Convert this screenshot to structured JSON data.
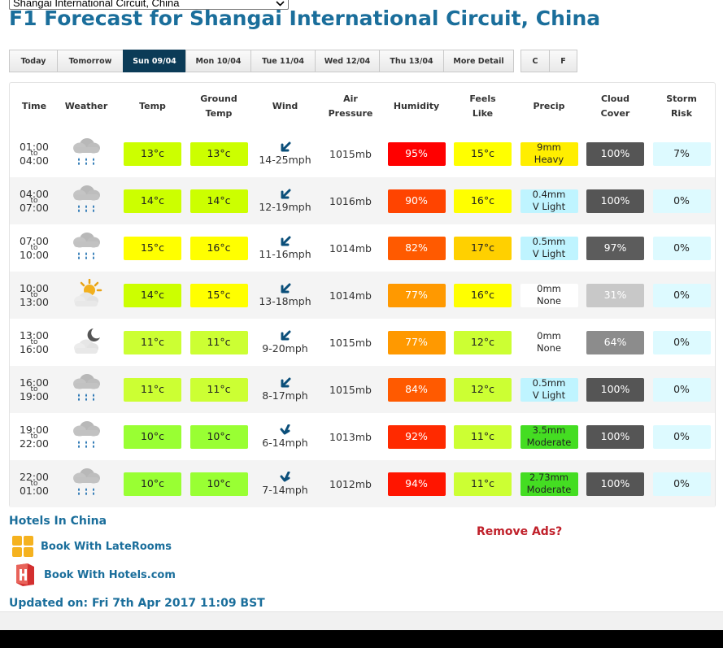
{
  "track_select": {
    "selected": "Shangai International Circuit, China"
  },
  "page_title": "F1 Forecast for Shangai International Circuit, China",
  "tabs": [
    {
      "label": "Today",
      "active": false
    },
    {
      "label": "Tomorrow",
      "active": false
    },
    {
      "label": "Sun 09/04",
      "active": true
    },
    {
      "label": "Mon 10/04",
      "active": false
    },
    {
      "label": "Tue 11/04",
      "active": false
    },
    {
      "label": "Wed 12/04",
      "active": false
    },
    {
      "label": "Thu 13/04",
      "active": false
    },
    {
      "label": "More Detail",
      "active": false
    }
  ],
  "units": [
    {
      "label": "C"
    },
    {
      "label": "F"
    }
  ],
  "columns": {
    "time": "Time",
    "weather": "Weather",
    "temp": "Temp",
    "ground_temp_1": "Ground",
    "ground_temp_2": "Temp",
    "wind": "Wind",
    "pressure_1": "Air",
    "pressure_2": "Pressure",
    "humidity": "Humidity",
    "feels_1": "Feels",
    "feels_2": "Like",
    "precip": "Precip",
    "cloud_1": "Cloud",
    "cloud_2": "Cover",
    "storm_1": "Storm",
    "storm_2": "Risk"
  },
  "rows": [
    {
      "from": "01:00",
      "to_word": "to",
      "until": "04:00",
      "icon": "rain-cloud-icon",
      "temp": "13°c",
      "temp_color": "#ccff00",
      "ground": "13°c",
      "ground_color": "#ccff00",
      "wind_speed": "14-25mph",
      "wind_dir": "from-north-east",
      "pressure": "1015mb",
      "humidity": "95%",
      "humidity_color": "#ff0000",
      "feels": "15°c",
      "feels_color": "#ffff00",
      "precip_amount": "9mm",
      "precip_desc": "Heavy",
      "precip_color": "#ffee00",
      "cloud": "100%",
      "cloud_color": "#555555",
      "storm": "7%",
      "storm_color": "#ddfaff"
    },
    {
      "from": "04:00",
      "to_word": "to",
      "until": "07:00",
      "icon": "rain-cloud-icon",
      "temp": "14°c",
      "temp_color": "#ccff00",
      "ground": "14°c",
      "ground_color": "#ccff00",
      "wind_speed": "12-19mph",
      "wind_dir": "from-north-east",
      "pressure": "1016mb",
      "humidity": "90%",
      "humidity_color": "#ff4400",
      "feels": "16°c",
      "feels_color": "#ffff00",
      "precip_amount": "0.4mm",
      "precip_desc": "V Light",
      "precip_color": "#bff4ff",
      "cloud": "100%",
      "cloud_color": "#555555",
      "storm": "0%",
      "storm_color": "#ddfaff"
    },
    {
      "from": "07:00",
      "to_word": "to",
      "until": "10:00",
      "icon": "rain-cloud-icon",
      "temp": "15°c",
      "temp_color": "#ffff00",
      "ground": "16°c",
      "ground_color": "#ffff00",
      "wind_speed": "11-16mph",
      "wind_dir": "from-north-east",
      "pressure": "1014mb",
      "humidity": "82%",
      "humidity_color": "#ff5a00",
      "feels": "17°c",
      "feels_color": "#ffd000",
      "precip_amount": "0.5mm",
      "precip_desc": "V Light",
      "precip_color": "#bff4ff",
      "cloud": "97%",
      "cloud_color": "#5c5c5c",
      "storm": "0%",
      "storm_color": "#ddfaff"
    },
    {
      "from": "10:00",
      "to_word": "to",
      "until": "13:00",
      "icon": "sun-behind-cloud-icon",
      "temp": "14°c",
      "temp_color": "#ccff00",
      "ground": "15°c",
      "ground_color": "#ffff00",
      "wind_speed": "13-18mph",
      "wind_dir": "from-north-east",
      "pressure": "1014mb",
      "humidity": "77%",
      "humidity_color": "#ff9900",
      "feels": "16°c",
      "feels_color": "#ffff00",
      "precip_amount": "0mm",
      "precip_desc": "None",
      "precip_color": "#ffffff",
      "cloud": "31%",
      "cloud_color": "#c8c8c8",
      "storm": "0%",
      "storm_color": "#ddfaff"
    },
    {
      "from": "13:00",
      "to_word": "to",
      "until": "16:00",
      "icon": "moon-behind-cloud-icon",
      "temp": "11°c",
      "temp_color": "#ccff33",
      "ground": "11°c",
      "ground_color": "#ccff33",
      "wind_speed": "9-20mph",
      "wind_dir": "from-north-east",
      "pressure": "1015mb",
      "humidity": "77%",
      "humidity_color": "#ff9900",
      "feels": "12°c",
      "feels_color": "#ccff33",
      "precip_amount": "0mm",
      "precip_desc": "None",
      "precip_color": "#ffffff",
      "cloud": "64%",
      "cloud_color": "#8c8c8c",
      "storm": "0%",
      "storm_color": "#ddfaff"
    },
    {
      "from": "16:00",
      "to_word": "to",
      "until": "19:00",
      "icon": "rain-cloud-icon",
      "temp": "11°c",
      "temp_color": "#ccff33",
      "ground": "11°c",
      "ground_color": "#ccff33",
      "wind_speed": "8-17mph",
      "wind_dir": "from-north-east",
      "pressure": "1015mb",
      "humidity": "84%",
      "humidity_color": "#ff5a00",
      "feels": "12°c",
      "feels_color": "#ccff33",
      "precip_amount": "0.5mm",
      "precip_desc": "V Light",
      "precip_color": "#bff4ff",
      "cloud": "100%",
      "cloud_color": "#555555",
      "storm": "0%",
      "storm_color": "#ddfaff"
    },
    {
      "from": "19:00",
      "to_word": "to",
      "until": "22:00",
      "icon": "rain-cloud-icon",
      "temp": "10°c",
      "temp_color": "#99ff33",
      "ground": "10°c",
      "ground_color": "#99ff33",
      "wind_speed": "6-14mph",
      "wind_dir": "from-north",
      "pressure": "1013mb",
      "humidity": "92%",
      "humidity_color": "#ff2a00",
      "feels": "11°c",
      "feels_color": "#ccff33",
      "precip_amount": "3.5mm",
      "precip_desc": "Moderate",
      "precip_color": "#44dd22",
      "cloud": "100%",
      "cloud_color": "#555555",
      "storm": "0%",
      "storm_color": "#ddfaff"
    },
    {
      "from": "22:00",
      "to_word": "to",
      "until": "01:00",
      "icon": "rain-cloud-icon",
      "temp": "10°c",
      "temp_color": "#99ff33",
      "ground": "10°c",
      "ground_color": "#99ff33",
      "wind_speed": "7-14mph",
      "wind_dir": "from-north",
      "pressure": "1012mb",
      "humidity": "94%",
      "humidity_color": "#ff1500",
      "feels": "11°c",
      "feels_color": "#ccff33",
      "precip_amount": "2.73mm",
      "precip_desc": "Moderate",
      "precip_color": "#44dd22",
      "cloud": "100%",
      "cloud_color": "#555555",
      "storm": "0%",
      "storm_color": "#ddfaff"
    }
  ],
  "hotels": {
    "title": "Hotels In China",
    "laterooms_label": "Book With LateRooms",
    "hotelscom_label": "Book With Hotels.com",
    "laterooms_icon": "laterooms-logo-icon",
    "hotelscom_icon": "hotels-com-logo-icon"
  },
  "remove_ads": "Remove Ads?",
  "updated": "Updated on: Fri 7th Apr 2017 11:09 BST",
  "colors": {
    "brand_blue": "#1a6e9b",
    "active_tab": "#0b3b57",
    "remove_ads_red": "#c0202a"
  }
}
